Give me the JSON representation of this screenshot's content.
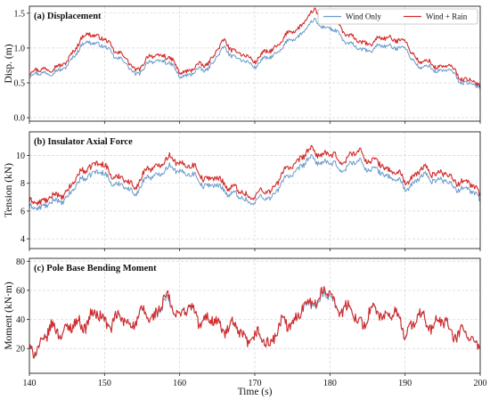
{
  "chart_data": [
    {
      "type": "line",
      "title": "(a) Displacement",
      "ylabel": "Disp. (m)",
      "xlim": [
        140,
        200
      ],
      "ylim": [
        -0.05,
        1.6
      ],
      "yticks": [
        0.0,
        0.5,
        1.0,
        1.5
      ],
      "ytick_labels": [
        "0.0",
        "0.5",
        "1.0",
        "1.5"
      ],
      "grid": true,
      "legend": {
        "placement": "top-right",
        "entries": [
          "Wind Only",
          "Wind + Rain"
        ]
      },
      "series": [
        {
          "name": "Wind Only",
          "color": "#6a9bcb",
          "x": [
            140,
            142,
            144,
            146,
            148,
            150,
            152,
            154,
            156,
            158,
            160,
            162,
            164,
            166,
            168,
            170,
            172,
            174,
            176,
            178,
            180,
            182,
            184,
            186,
            188,
            190,
            192,
            194,
            196,
            198,
            200
          ],
          "y": [
            0.58,
            0.66,
            0.64,
            0.9,
            1.12,
            1.0,
            0.86,
            0.62,
            0.78,
            0.84,
            0.6,
            0.64,
            0.74,
            1.0,
            0.82,
            0.76,
            0.86,
            1.04,
            1.2,
            1.38,
            1.28,
            1.12,
            0.96,
            1.0,
            1.04,
            0.98,
            0.72,
            0.7,
            0.66,
            0.5,
            0.42
          ]
        },
        {
          "name": "Wind + Rain",
          "color": "#d42a2a",
          "x": [
            140,
            142,
            144,
            146,
            148,
            150,
            152,
            154,
            156,
            158,
            160,
            162,
            164,
            166,
            168,
            170,
            172,
            174,
            176,
            178,
            180,
            182,
            184,
            186,
            188,
            190,
            192,
            194,
            196,
            198,
            200
          ],
          "y": [
            0.62,
            0.72,
            0.7,
            0.98,
            1.24,
            1.1,
            0.94,
            0.68,
            0.86,
            0.92,
            0.66,
            0.7,
            0.82,
            1.1,
            0.9,
            0.84,
            0.95,
            1.15,
            1.32,
            1.52,
            1.42,
            1.24,
            1.06,
            1.1,
            1.16,
            1.08,
            0.8,
            0.76,
            0.72,
            0.55,
            0.45
          ]
        }
      ]
    },
    {
      "type": "line",
      "title": "(b) Insulator Axial Force",
      "ylabel": "Tension (kN)",
      "xlim": [
        140,
        200
      ],
      "ylim": [
        3.3,
        11.7
      ],
      "yticks": [
        4,
        6,
        8,
        10
      ],
      "ytick_labels": [
        "4",
        "6",
        "8",
        "10"
      ],
      "grid": true,
      "series": [
        {
          "name": "Wind Only",
          "color": "#6a9bcb",
          "x": [
            140,
            142,
            144,
            146,
            148,
            150,
            152,
            154,
            156,
            158,
            160,
            162,
            164,
            166,
            168,
            170,
            172,
            174,
            176,
            178,
            180,
            182,
            184,
            186,
            188,
            190,
            192,
            194,
            196,
            198,
            200
          ],
          "y": [
            6.0,
            6.5,
            6.6,
            7.6,
            8.8,
            8.6,
            7.8,
            7.4,
            8.4,
            9.0,
            9.0,
            8.4,
            7.8,
            7.6,
            6.9,
            6.7,
            7.0,
            8.2,
            9.2,
            9.8,
            9.3,
            9.1,
            9.6,
            8.8,
            8.6,
            7.6,
            8.4,
            8.4,
            7.9,
            7.6,
            7.0
          ]
        },
        {
          "name": "Wind + Rain",
          "color": "#d42a2a",
          "x": [
            140,
            142,
            144,
            146,
            148,
            150,
            152,
            154,
            156,
            158,
            160,
            162,
            164,
            166,
            168,
            170,
            172,
            174,
            176,
            178,
            180,
            182,
            184,
            186,
            188,
            190,
            192,
            194,
            196,
            198,
            200
          ],
          "y": [
            6.4,
            6.9,
            7.0,
            8.1,
            9.4,
            9.2,
            8.3,
            7.9,
            9.0,
            9.7,
            9.6,
            9.0,
            8.3,
            8.1,
            7.3,
            7.1,
            7.5,
            8.8,
            9.8,
            10.4,
            9.9,
            9.7,
            10.3,
            9.4,
            9.1,
            8.1,
            8.9,
            8.9,
            8.4,
            8.1,
            7.4
          ]
        }
      ]
    },
    {
      "type": "line",
      "title": "(c) Pole Base Bending Moment",
      "ylabel": "Moment (kN·m)",
      "xlabel": "Time (s)",
      "xlim": [
        140,
        200
      ],
      "xticks": [
        140,
        150,
        160,
        170,
        180,
        190,
        200
      ],
      "xtick_labels": [
        "140",
        "150",
        "160",
        "170",
        "180",
        "190",
        "200"
      ],
      "ylim": [
        3,
        82
      ],
      "yticks": [
        20,
        40,
        60,
        80
      ],
      "ytick_labels": [
        "20",
        "40",
        "60",
        "80"
      ],
      "grid": true,
      "series": [
        {
          "name": "Wind Only",
          "color": "#6a9bcb",
          "x": [
            140,
            142,
            144,
            146,
            148,
            150,
            152,
            154,
            156,
            158,
            160,
            162,
            164,
            166,
            168,
            170,
            172,
            174,
            176,
            178,
            180,
            182,
            184,
            186,
            188,
            190,
            192,
            194,
            196,
            198,
            200
          ],
          "y": [
            16,
            28,
            34,
            34,
            42,
            40,
            38,
            40,
            42,
            50,
            46,
            44,
            38,
            36,
            30,
            26,
            26,
            36,
            44,
            54,
            55,
            46,
            40,
            44,
            44,
            34,
            40,
            38,
            34,
            28,
            24
          ]
        },
        {
          "name": "Wind + Rain",
          "color": "#d42a2a",
          "x": [
            140,
            142,
            144,
            146,
            148,
            150,
            152,
            154,
            156,
            158,
            160,
            162,
            164,
            166,
            168,
            170,
            172,
            174,
            176,
            178,
            180,
            182,
            184,
            186,
            188,
            190,
            192,
            194,
            196,
            198,
            200
          ],
          "y": [
            16,
            28,
            34,
            34,
            42,
            40,
            38,
            40,
            42,
            52,
            46,
            44,
            38,
            36,
            30,
            26,
            26,
            36,
            44,
            56,
            57,
            46,
            40,
            44,
            44,
            34,
            40,
            38,
            34,
            28,
            24
          ]
        }
      ]
    }
  ]
}
